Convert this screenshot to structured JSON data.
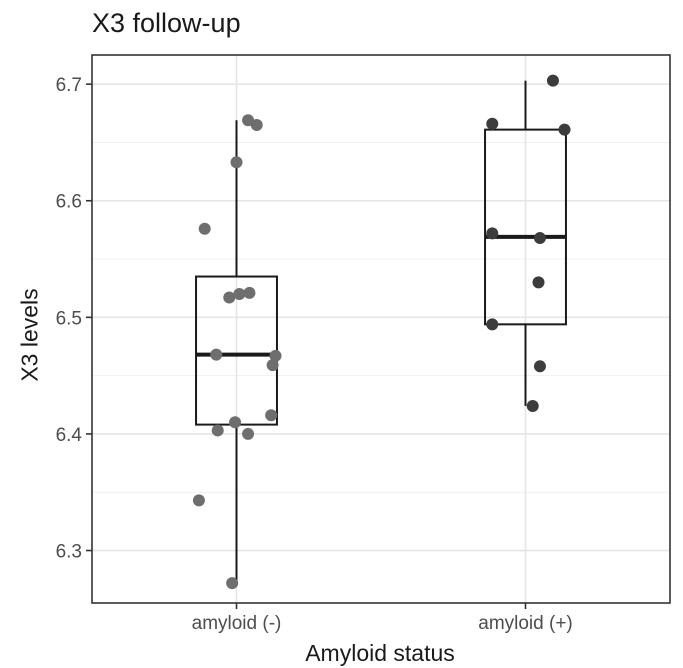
{
  "chart_data": {
    "type": "boxplot",
    "title": "X3 follow-up",
    "xlabel": "Amyloid status",
    "ylabel": "X3 levels",
    "categories": [
      "amyloid (-)",
      "amyloid (+)"
    ],
    "ylim": [
      6.255,
      6.725
    ],
    "yticks": [
      "6.3",
      "6.4",
      "6.5",
      "6.6",
      "6.7"
    ],
    "grid": true,
    "legend": "none",
    "colors": {
      "points_neg": "#6e6e6e",
      "points_pos": "#3c3c3c",
      "box": "#1a1a1a",
      "grid": "#e5e5e5"
    },
    "boxes": [
      {
        "category": "amyloid (-)",
        "min": 6.272,
        "q1": 6.408,
        "median": 6.468,
        "q3": 6.535,
        "max": 6.669
      },
      {
        "category": "amyloid (+)",
        "min": 6.424,
        "q1": 6.494,
        "median": 6.569,
        "q3": 6.661,
        "max": 6.703
      }
    ],
    "points": [
      {
        "category": "amyloid (-)",
        "jitter": 0.08,
        "y": 6.669
      },
      {
        "category": "amyloid (-)",
        "jitter": 0.14,
        "y": 6.665
      },
      {
        "category": "amyloid (-)",
        "jitter": 0.0,
        "y": 6.633
      },
      {
        "category": "amyloid (-)",
        "jitter": -0.22,
        "y": 6.576
      },
      {
        "category": "amyloid (-)",
        "jitter": 0.09,
        "y": 6.521
      },
      {
        "category": "amyloid (-)",
        "jitter": -0.05,
        "y": 6.517
      },
      {
        "category": "amyloid (-)",
        "jitter": 0.02,
        "y": 6.52
      },
      {
        "category": "amyloid (-)",
        "jitter": -0.14,
        "y": 6.468
      },
      {
        "category": "amyloid (-)",
        "jitter": 0.27,
        "y": 6.467
      },
      {
        "category": "amyloid (-)",
        "jitter": 0.25,
        "y": 6.459
      },
      {
        "category": "amyloid (-)",
        "jitter": 0.24,
        "y": 6.416
      },
      {
        "category": "amyloid (-)",
        "jitter": -0.01,
        "y": 6.41
      },
      {
        "category": "amyloid (-)",
        "jitter": -0.13,
        "y": 6.403
      },
      {
        "category": "amyloid (-)",
        "jitter": 0.08,
        "y": 6.4
      },
      {
        "category": "amyloid (-)",
        "jitter": -0.26,
        "y": 6.343
      },
      {
        "category": "amyloid (-)",
        "jitter": -0.03,
        "y": 6.272
      },
      {
        "category": "amyloid (+)",
        "jitter": 0.19,
        "y": 6.703
      },
      {
        "category": "amyloid (+)",
        "jitter": -0.23,
        "y": 6.666
      },
      {
        "category": "amyloid (+)",
        "jitter": 0.27,
        "y": 6.661
      },
      {
        "category": "amyloid (+)",
        "jitter": -0.23,
        "y": 6.572
      },
      {
        "category": "amyloid (+)",
        "jitter": 0.1,
        "y": 6.568
      },
      {
        "category": "amyloid (+)",
        "jitter": 0.09,
        "y": 6.53
      },
      {
        "category": "amyloid (+)",
        "jitter": -0.23,
        "y": 6.494
      },
      {
        "category": "amyloid (+)",
        "jitter": 0.1,
        "y": 6.458
      },
      {
        "category": "amyloid (+)",
        "jitter": 0.05,
        "y": 6.424
      }
    ]
  }
}
